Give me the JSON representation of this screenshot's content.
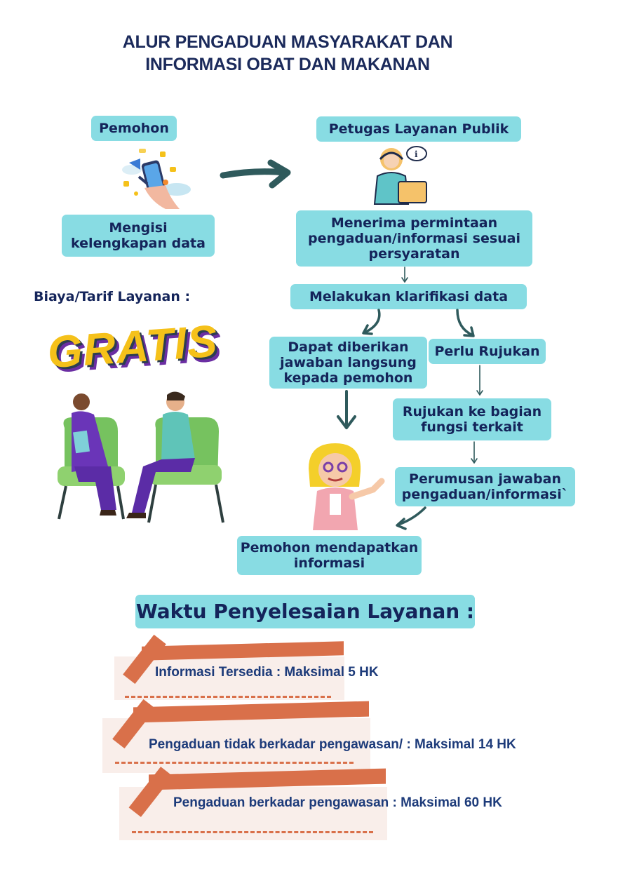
{
  "title": {
    "line1": "ALUR PENGADUAN  MASYARAKAT DAN",
    "line2": "INFORMASI OBAT DAN MAKANAN"
  },
  "left": {
    "pemohon": "Pemohon",
    "mengisi_line1": "Mengisi",
    "mengisi_line2": "kelengkapan data",
    "biaya_label": "Biaya/Tarif Layanan :",
    "gratis": "GRATIS"
  },
  "flow": {
    "petugas": "Petugas Layanan Publik",
    "menerima_line1": "Menerima permintaan",
    "menerima_line2": "pengaduan/informasi sesuai",
    "menerima_line3": "persyaratan",
    "klarifikasi": "Melakukan klarifikasi data",
    "jawaban_line1": "Dapat diberikan",
    "jawaban_line2": "jawaban langsung",
    "jawaban_line3": "kepada pemohon",
    "rujukan": "Perlu Rujukan",
    "rujukan_bagian_line1": "Rujukan ke bagian",
    "rujukan_bagian_line2": "fungsi terkait",
    "perumusan_line1": "Perumusan jawaban",
    "perumusan_line2": "pengaduan/informasi`",
    "mendapatkan_line1": "Pemohon mendapatkan",
    "mendapatkan_line2": "informasi"
  },
  "waktu": {
    "heading": "Waktu Penyelesaian Layanan :",
    "items": [
      "Informasi Tersedia  : Maksimal 5 HK",
      "Pengaduan tidak berkadar pengawasan/ :  Maksimal 14 HK",
      "Pengaduan  berkadar pengawasan :  Maksimal 60 HK"
    ]
  },
  "colors": {
    "box": "#88dce3",
    "text": "#14245a",
    "accent": "#d9704a",
    "arrow": "#2f5a5c"
  }
}
